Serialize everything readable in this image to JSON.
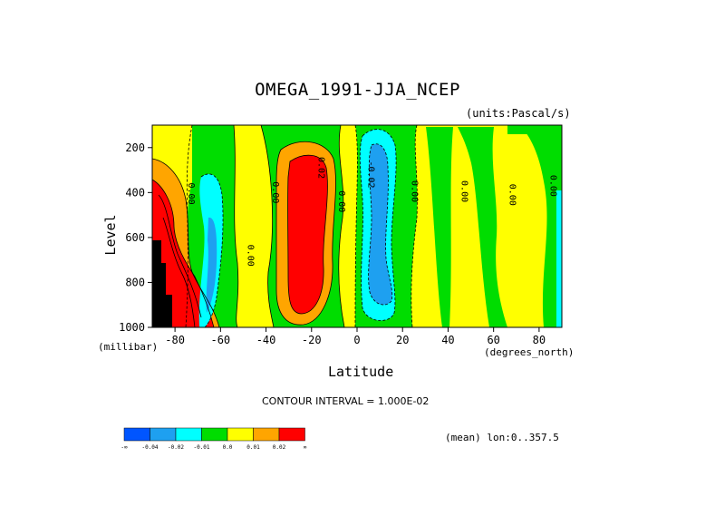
{
  "header": {
    "title": "OMEGA_1991-JJA_NCEP",
    "units": "(units:Pascal/s)"
  },
  "footer": {
    "contour_interval": "CONTOUR INTERVAL = 1.000E-02",
    "mean_label": "(mean) lon:0..357.5"
  },
  "chart_data": {
    "type": "heatmap",
    "title": "OMEGA_1991-JJA_NCEP",
    "units": "(units:Pascal/s)",
    "xlabel": "Latitude",
    "xunit": "(degrees_north)",
    "ylabel": "Level",
    "yunit": "(millibar)",
    "xlim": [
      -90,
      90
    ],
    "ylim": [
      1000,
      100
    ],
    "x_ticks": [
      -80,
      -60,
      -40,
      -20,
      0,
      20,
      40,
      60,
      80
    ],
    "y_ticks": [
      200,
      400,
      600,
      800,
      1000
    ],
    "contour_interval": 0.01,
    "contour_labels": [
      {
        "text": "0.00",
        "lat": -74,
        "lev": 405
      },
      {
        "text": "0.00",
        "lat": -48,
        "lev": 680
      },
      {
        "text": "0.00",
        "lat": -37,
        "lev": 400
      },
      {
        "text": "0.02",
        "lat": -17,
        "lev": 290
      },
      {
        "text": "0.00",
        "lat": -8,
        "lev": 440
      },
      {
        "text": "-0.02",
        "lat": 5,
        "lev": 320
      },
      {
        "text": "0.00",
        "lat": 24,
        "lev": 395
      },
      {
        "text": "0.00",
        "lat": 46,
        "lev": 395
      },
      {
        "text": "0.00",
        "lat": 67,
        "lev": 410
      },
      {
        "text": "0.00",
        "lat": 85,
        "lev": 370
      }
    ],
    "legend": {
      "colors": [
        "#0055ff",
        "#1ea0f0",
        "#00ffff",
        "#00dd00",
        "#ffff00",
        "#ffa500",
        "#ff0000"
      ],
      "boundary_labels": [
        "-∞",
        "-0.04",
        "-0.02",
        "-0.01",
        "0.0",
        "0.01",
        "0.02",
        "∞"
      ]
    },
    "color_regions": [
      {
        "range": "<-0.04",
        "color": "#0055ff"
      },
      {
        "range": "-0.04..-0.02",
        "color": "#1ea0f0"
      },
      {
        "range": "-0.02..-0.01",
        "color": "#00ffff"
      },
      {
        "range": "-0.01..0.0",
        "color": "#00dd00"
      },
      {
        "range": "0.0..0.01",
        "color": "#ffff00"
      },
      {
        "range": "0.01..0.02",
        "color": "#ffa500"
      },
      {
        "range": ">0.02",
        "color": "#ff0000"
      }
    ],
    "missing_region": {
      "color": "#000000",
      "description": "below surface near -85 to -80 latitude, 650-1000 mb"
    }
  }
}
